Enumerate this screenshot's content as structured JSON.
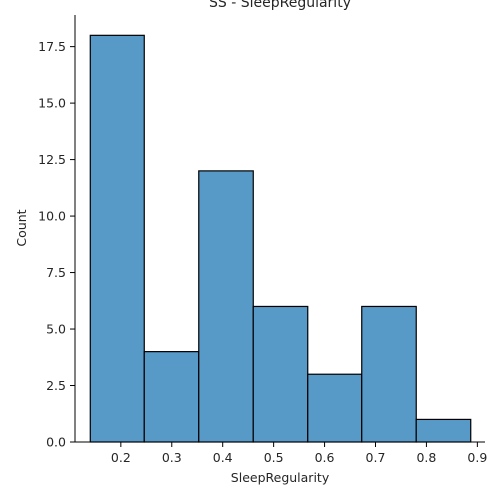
{
  "chart_data": {
    "type": "bar",
    "title": "SS - SleepRegularity",
    "xlabel": "SleepRegularity",
    "ylabel": "Count",
    "bin_edges": [
      0.14,
      0.246,
      0.353,
      0.46,
      0.567,
      0.673,
      0.78,
      0.887
    ],
    "values": [
      18,
      4,
      12,
      6,
      3,
      6,
      1
    ],
    "xlim": [
      0.11,
      0.915
    ],
    "ylim": [
      0,
      18.9
    ],
    "xticks": [
      0.2,
      0.3,
      0.4,
      0.5,
      0.6,
      0.7,
      0.8,
      0.9
    ],
    "xtick_labels": [
      "0.2",
      "0.3",
      "0.4",
      "0.5",
      "0.6",
      "0.7",
      "0.8",
      "0.9"
    ],
    "yticks": [
      0,
      2.5,
      5,
      7.5,
      10,
      12.5,
      15,
      17.5
    ],
    "ytick_labels": [
      "0.0",
      "2.5",
      "5.0",
      "7.5",
      "10.0",
      "12.5",
      "15.0",
      "17.5"
    ],
    "grid": false,
    "bar_color": "#5799c7",
    "edge_color": "#000000"
  }
}
